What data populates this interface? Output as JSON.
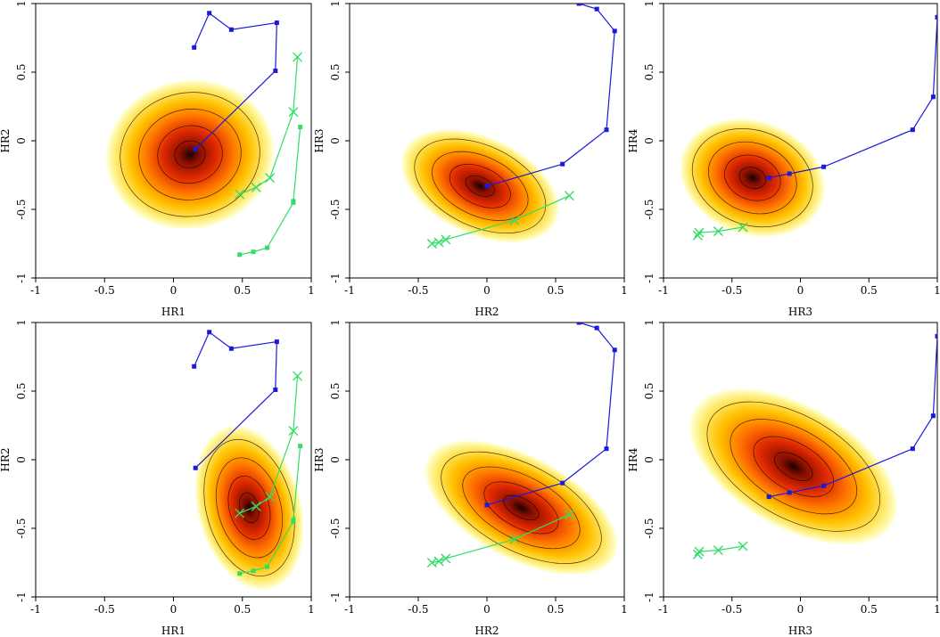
{
  "figure": {
    "colors": {
      "blue_track": "#1a1adb",
      "green_track": "#33dd66",
      "contour": "#000000",
      "density_scale": [
        "#ffffcc",
        "#ffe866",
        "#ffc000",
        "#ff7a00",
        "#e02a00",
        "#8a0f00",
        "#1a0000"
      ]
    }
  },
  "chart_data": [
    {
      "type": "heatmap",
      "xlabel": "HR1",
      "ylabel": "HR2",
      "xlim": [
        -1,
        1
      ],
      "ylim": [
        -1,
        1
      ],
      "xticks": [
        "-1",
        "-0.5",
        "0",
        "0.5",
        "1"
      ],
      "yticks": [
        "-1",
        "-0.5",
        "0",
        "0.5",
        "1"
      ],
      "density_peak": [
        0.12,
        -0.1
      ],
      "series": [
        {
          "color": "blue",
          "marker": "square",
          "x": [
            0.15,
            0.26,
            0.42,
            0.75,
            0.74,
            0.16
          ],
          "y": [
            0.68,
            0.93,
            0.81,
            0.86,
            0.51,
            -0.06
          ]
        },
        {
          "color": "green",
          "marker": "cross",
          "x": [
            0.9,
            0.87,
            0.7,
            0.6,
            0.48
          ],
          "y": [
            0.61,
            0.21,
            -0.27,
            -0.34,
            -0.39
          ]
        },
        {
          "color": "green",
          "marker": "square",
          "x": [
            0.92,
            0.87,
            0.87,
            0.68,
            0.58,
            0.48
          ],
          "y": [
            0.1,
            -0.44,
            -0.45,
            -0.78,
            -0.81,
            -0.83
          ]
        }
      ]
    },
    {
      "type": "heatmap",
      "xlabel": "HR2",
      "ylabel": "HR3",
      "xlim": [
        -1,
        1
      ],
      "ylim": [
        -1,
        1
      ],
      "xticks": [
        "-1",
        "-0.5",
        "0",
        "0.5",
        "1"
      ],
      "yticks": [
        "-1",
        "-0.5",
        "0",
        "0.5",
        "1"
      ],
      "density_peak": [
        -0.05,
        -0.33
      ],
      "series": [
        {
          "color": "blue",
          "marker": "square",
          "x": [
            0,
            0.55,
            0.87,
            0.93,
            0.8,
            0.67
          ],
          "y": [
            -0.33,
            -0.17,
            0.08,
            0.8,
            0.96,
            1.0
          ]
        },
        {
          "color": "green",
          "marker": "cross",
          "x": [
            0.6,
            0.2,
            -0.3,
            -0.35,
            -0.4
          ],
          "y": [
            -0.4,
            -0.58,
            -0.72,
            -0.74,
            -0.75
          ]
        }
      ]
    },
    {
      "type": "heatmap",
      "xlabel": "HR3",
      "ylabel": "HR4",
      "xlim": [
        -1,
        1
      ],
      "ylim": [
        -1,
        1
      ],
      "xticks": [
        "-1",
        "-0.5",
        "0",
        "0.5",
        "1"
      ],
      "yticks": [
        "-1",
        "-0.5",
        "0",
        "0.5",
        "1"
      ],
      "density_peak": [
        -0.35,
        -0.27
      ],
      "series": [
        {
          "color": "blue",
          "marker": "square",
          "x": [
            -0.23,
            -0.08,
            0.17,
            0.82,
            0.97,
            1.0
          ],
          "y": [
            -0.27,
            -0.24,
            -0.19,
            0.08,
            0.32,
            0.9
          ]
        },
        {
          "color": "green",
          "marker": "cross",
          "x": [
            -0.42,
            -0.6,
            -0.74,
            -0.75
          ],
          "y": [
            -0.63,
            -0.66,
            -0.67,
            -0.69
          ]
        }
      ]
    },
    {
      "type": "heatmap",
      "xlabel": "HR1",
      "ylabel": "HR2",
      "xlim": [
        -1,
        1
      ],
      "ylim": [
        -1,
        1
      ],
      "xticks": [
        "-1",
        "-0.5",
        "0",
        "0.5",
        "1"
      ],
      "yticks": [
        "-1",
        "-0.5",
        "0",
        "0.5",
        "1"
      ],
      "density_peak": [
        0.55,
        -0.35
      ],
      "series": [
        {
          "color": "blue",
          "marker": "square",
          "x": [
            0.15,
            0.26,
            0.42,
            0.75,
            0.74,
            0.16
          ],
          "y": [
            0.68,
            0.93,
            0.81,
            0.86,
            0.51,
            -0.06
          ]
        },
        {
          "color": "green",
          "marker": "cross",
          "x": [
            0.9,
            0.87,
            0.7,
            0.6,
            0.48
          ],
          "y": [
            0.61,
            0.21,
            -0.27,
            -0.34,
            -0.39
          ]
        },
        {
          "color": "green",
          "marker": "square",
          "x": [
            0.92,
            0.87,
            0.87,
            0.68,
            0.58,
            0.48
          ],
          "y": [
            0.1,
            -0.44,
            -0.45,
            -0.78,
            -0.81,
            -0.83
          ]
        }
      ]
    },
    {
      "type": "heatmap",
      "xlabel": "HR2",
      "ylabel": "HR3",
      "xlim": [
        -1,
        1
      ],
      "ylim": [
        -1,
        1
      ],
      "xticks": [
        "-1",
        "-0.5",
        "0",
        "0.5",
        "1"
      ],
      "yticks": [
        "-1",
        "-0.5",
        "0",
        "0.5",
        "1"
      ],
      "density_peak": [
        0.25,
        -0.35
      ],
      "series": [
        {
          "color": "blue",
          "marker": "square",
          "x": [
            0,
            0.55,
            0.87,
            0.93,
            0.8,
            0.67
          ],
          "y": [
            -0.33,
            -0.17,
            0.08,
            0.8,
            0.96,
            1.0
          ]
        },
        {
          "color": "green",
          "marker": "cross",
          "x": [
            0.6,
            0.2,
            -0.3,
            -0.35,
            -0.4
          ],
          "y": [
            -0.4,
            -0.58,
            -0.72,
            -0.74,
            -0.75
          ]
        }
      ]
    },
    {
      "type": "heatmap",
      "xlabel": "HR3",
      "ylabel": "HR4",
      "xlim": [
        -1,
        1
      ],
      "ylim": [
        -1,
        1
      ],
      "xticks": [
        "-1",
        "-0.5",
        "0",
        "0.5",
        "1"
      ],
      "yticks": [
        "-1",
        "-0.5",
        "0",
        "0.5",
        "1"
      ],
      "density_peak": [
        -0.05,
        -0.05
      ],
      "series": [
        {
          "color": "blue",
          "marker": "square",
          "x": [
            -0.23,
            -0.08,
            0.17,
            0.82,
            0.97,
            1.0
          ],
          "y": [
            -0.27,
            -0.24,
            -0.19,
            0.08,
            0.32,
            0.9
          ]
        },
        {
          "color": "green",
          "marker": "cross",
          "x": [
            -0.42,
            -0.6,
            -0.74,
            -0.75
          ],
          "y": [
            -0.63,
            -0.66,
            -0.67,
            -0.69
          ]
        }
      ]
    }
  ]
}
